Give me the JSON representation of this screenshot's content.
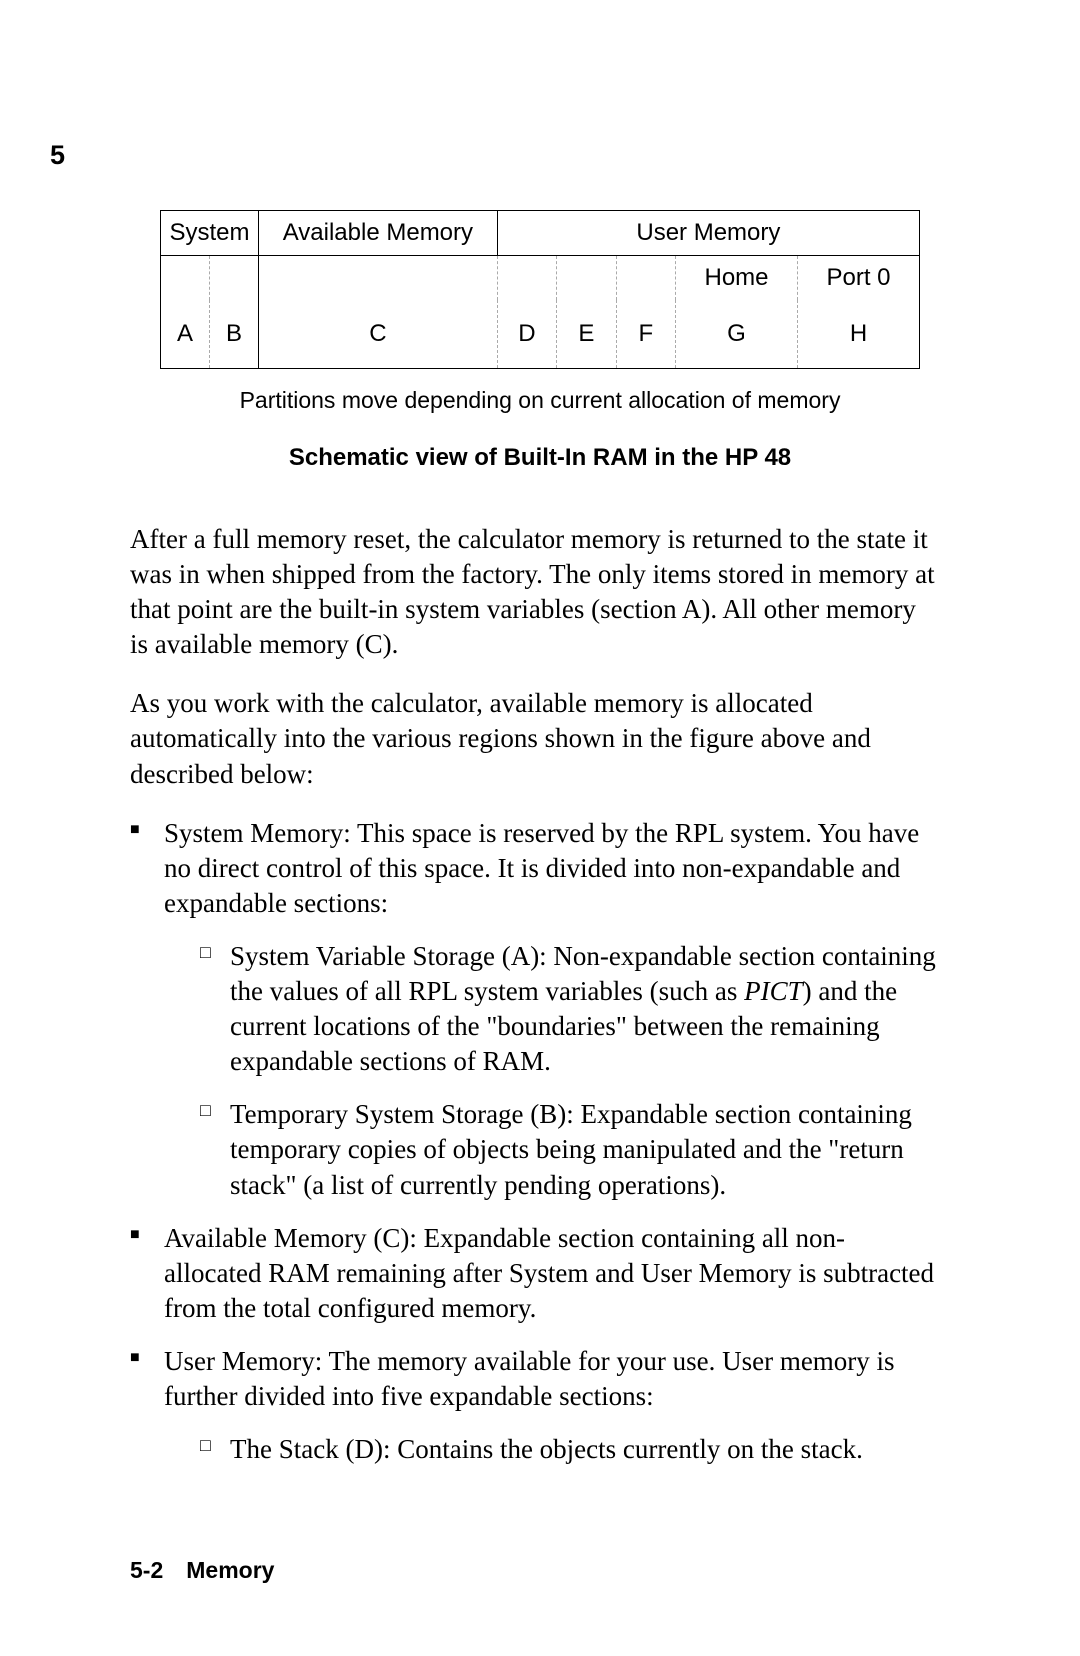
{
  "page_number": "5",
  "diagram": {
    "headers": {
      "system": "System",
      "available": "Available Memory",
      "user": "User Memory"
    },
    "subheaders": {
      "empty": "",
      "home": "Home",
      "port0": "Port 0"
    },
    "letters": {
      "a": "A",
      "b": "B",
      "c": "C",
      "d": "D",
      "e": "E",
      "f": "F",
      "g": "G",
      "h": "H"
    },
    "caption1": "Partitions move depending on current allocation of memory",
    "caption2": "Schematic view of Built-In RAM in the HP 48"
  },
  "para1": "After a full memory reset, the calculator memory is returned to the state it was in when shipped from the factory. The only items stored in memory at that point are the built-in system variables (section A). All other memory is available memory (C).",
  "para2": "As you work with the calculator, available memory is allocated automatically into the various regions shown in the figure above and described below:",
  "bullets": {
    "b1_head": "System Memory: This space is reserved by the RPL system. You have no direct control of this space. It is divided into non-expandable and expandable sections:",
    "b1_sub1_pre": "System Variable Storage (A): Non-expandable section containing the values of all RPL system variables (such as ",
    "b1_sub1_italic": "PICT",
    "b1_sub1_post": ") and the current locations of the \"boundaries\" between the remaining expandable sections of RAM.",
    "b1_sub2": "Temporary System Storage (B): Expandable section containing temporary copies of objects being manipulated and the \"return stack\" (a list of currently pending operations).",
    "b2": "Available Memory (C): Expandable section containing all non-allocated RAM remaining after System and User Memory is subtracted from the total configured memory.",
    "b3_head": "User Memory: The memory available for your use. User memory is further divided into five expandable sections:",
    "b3_sub1": "The Stack (D): Contains the objects currently on the stack."
  },
  "footer": "5-2 Memory"
}
